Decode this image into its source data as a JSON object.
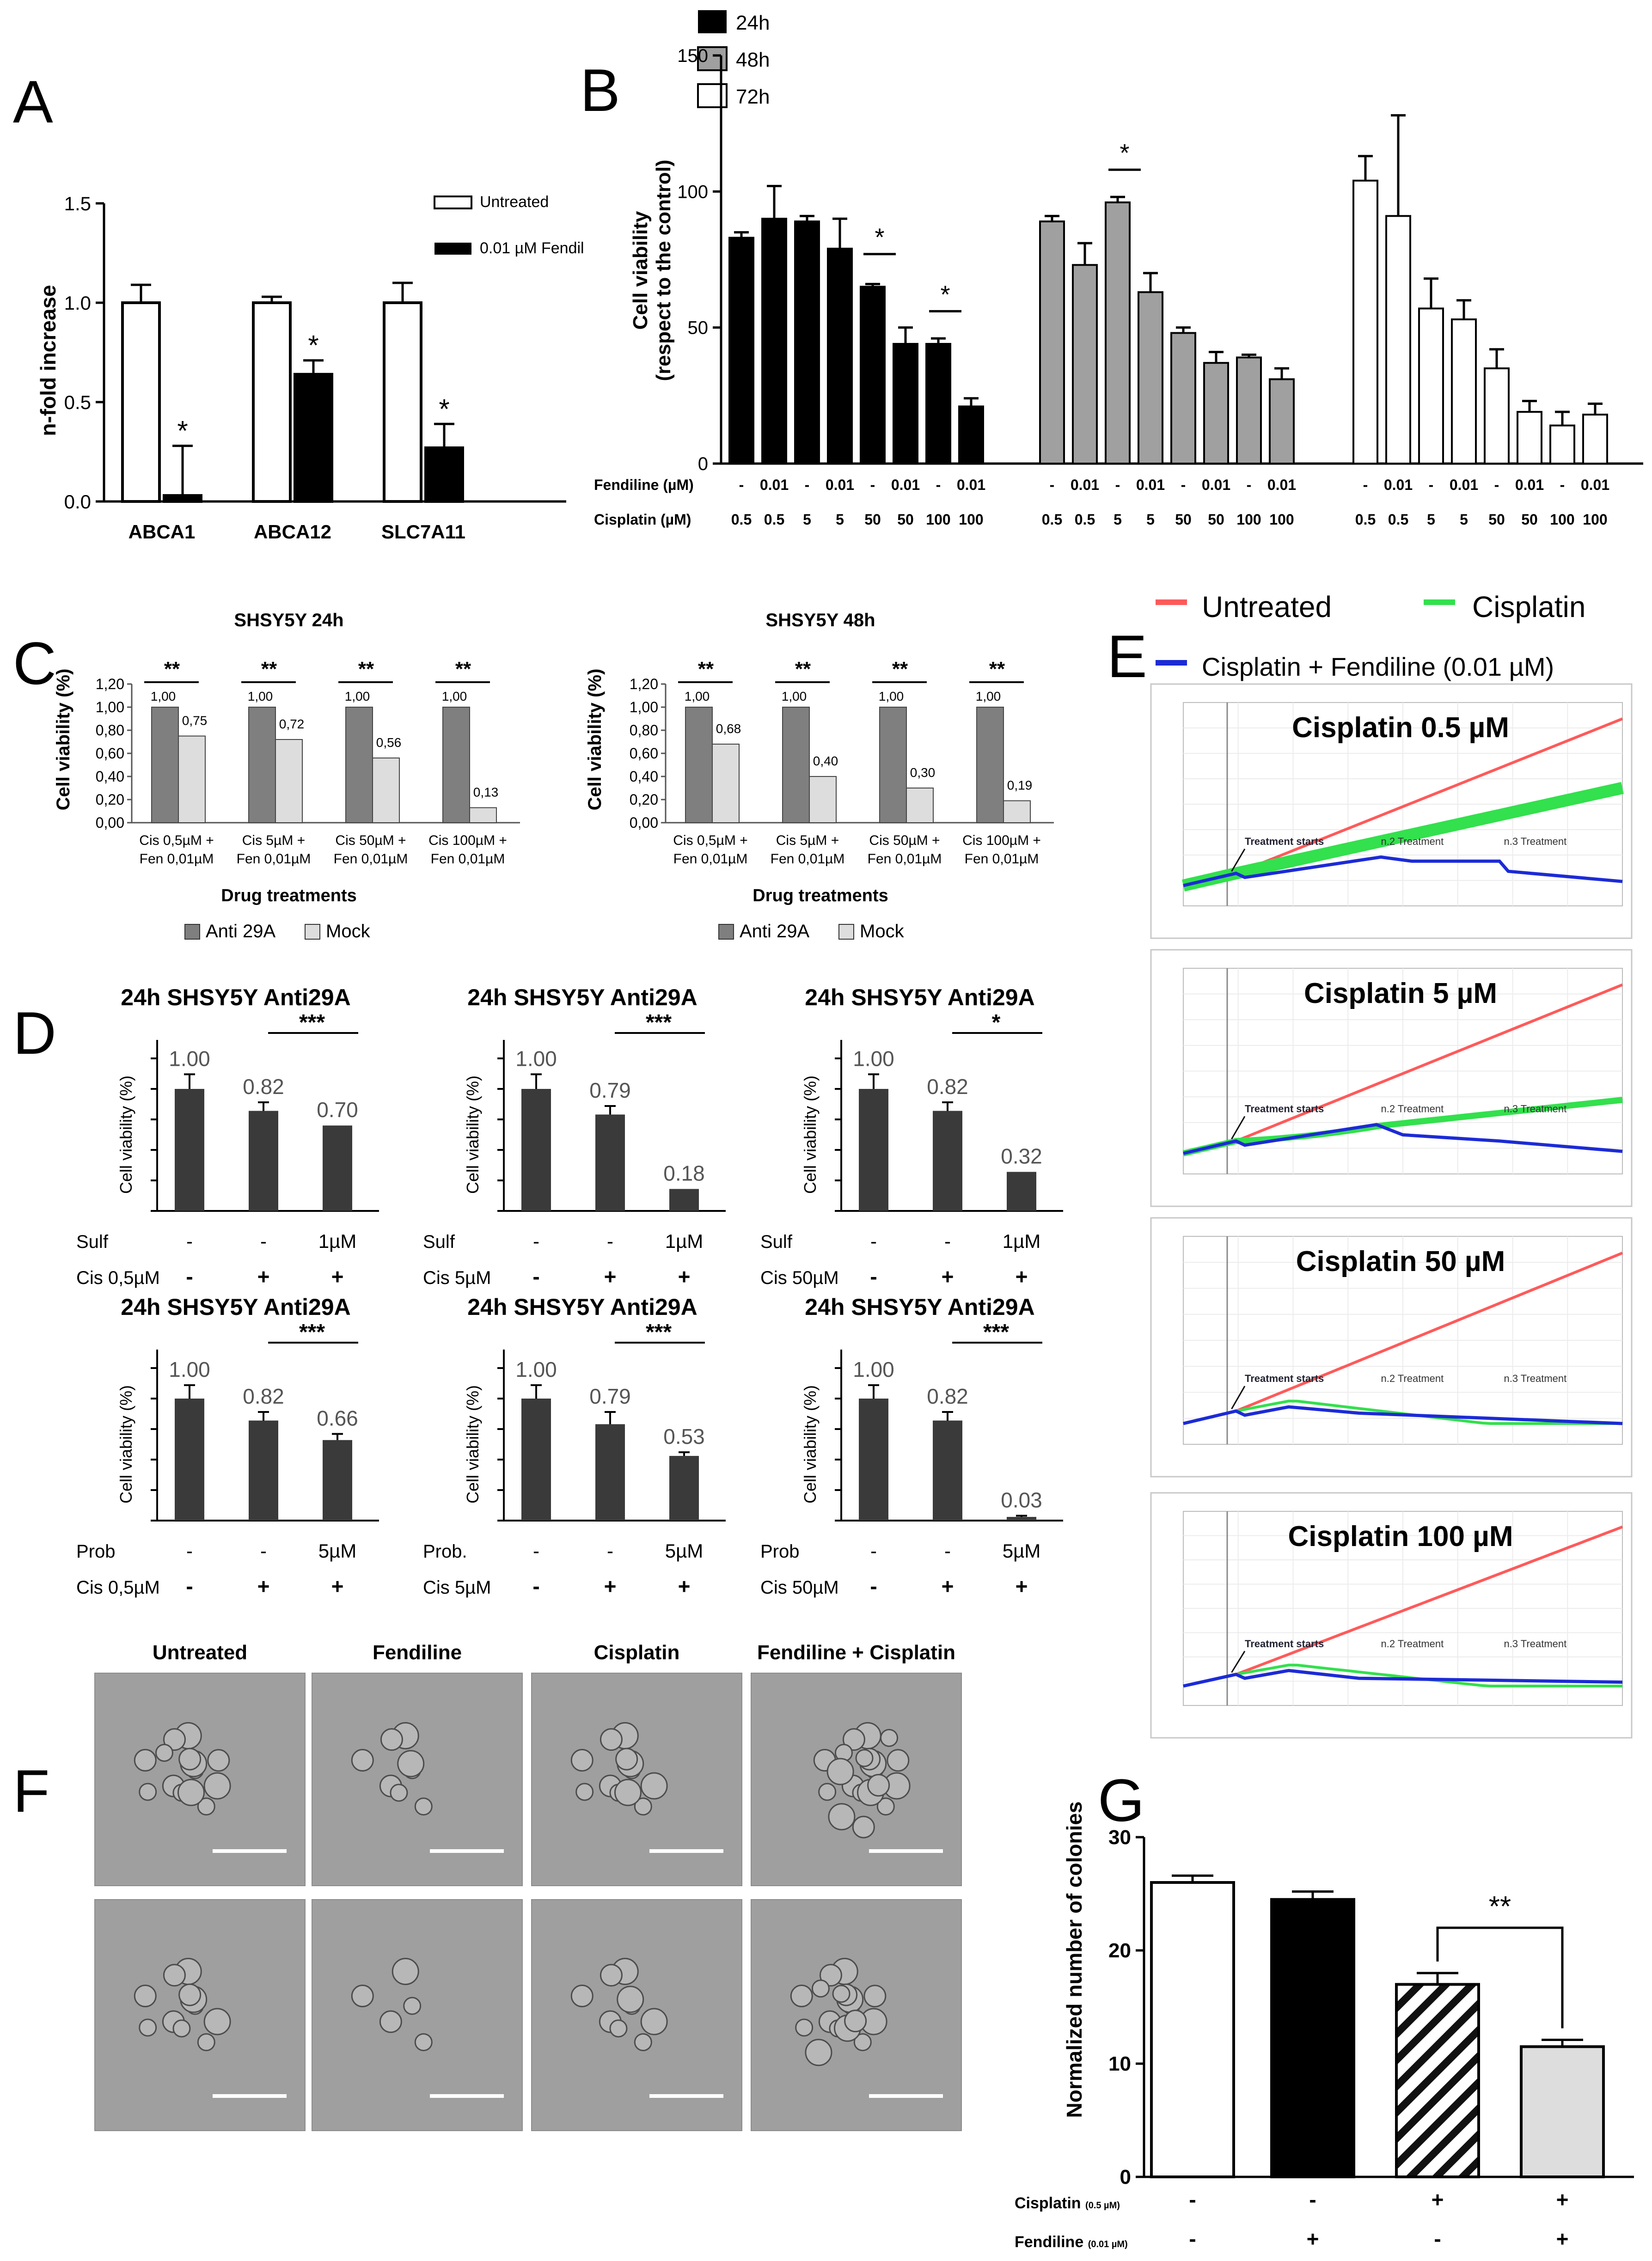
{
  "figure": {
    "panel_letters": [
      "A",
      "B",
      "C",
      "D",
      "E",
      "F",
      "G"
    ],
    "colors": {
      "black": "#000000",
      "gray": "#a0a0a0",
      "dark": "#3a3a3a",
      "light": "#dddddd",
      "mid": "#7f7f7f",
      "white": "#ffffff",
      "red": "#ff5a5a",
      "green": "#33e04d",
      "blue": "#1c2bd6",
      "photo": "#9f9f9f"
    }
  },
  "chart_data": [
    {
      "id": "A",
      "type": "bar",
      "ylabel": "n-fold increase",
      "ylim": [
        0,
        1.5
      ],
      "yticks": [
        "0.0",
        "0.5",
        "1.0",
        "1.5"
      ],
      "categories": [
        "ABCA1",
        "ABCA12",
        "SLC7A11"
      ],
      "series": [
        {
          "name": "Untreated",
          "fill": "white",
          "values": [
            1.0,
            1.0,
            1.0
          ],
          "errors": [
            0.09,
            0.03,
            0.1
          ]
        },
        {
          "name": "0.01 µM Fendil",
          "fill": "black",
          "values": [
            0.03,
            0.64,
            0.27
          ],
          "errors": [
            0.25,
            0.07,
            0.12
          ]
        }
      ],
      "annotations": [
        "*",
        "*",
        "*"
      ]
    },
    {
      "id": "B",
      "type": "bar",
      "ylabel_line1": "Cell viability",
      "ylabel_line2": "(respect to the control)",
      "ylim": [
        0,
        150
      ],
      "yticks": [
        "0",
        "50",
        "100",
        "150"
      ],
      "legend": [
        {
          "label": "24h",
          "fill": "black"
        },
        {
          "label": "48h",
          "fill": "gray"
        },
        {
          "label": "72h",
          "fill": "white"
        }
      ],
      "row_labels": [
        "Fendiline (µM)",
        "Cisplatin (µM)"
      ],
      "fendiline": [
        "-",
        "0.01",
        "-",
        "0.01",
        "-",
        "0.01",
        "-",
        "0.01"
      ],
      "cisplatin": [
        "0.5",
        "0.5",
        "5",
        "5",
        "50",
        "50",
        "100",
        "100"
      ],
      "series": [
        {
          "name": "24h",
          "fill": "black",
          "values": [
            83,
            90,
            89,
            79,
            65,
            44,
            44,
            21
          ],
          "errors": [
            2,
            12,
            2,
            11,
            1,
            6,
            2,
            3
          ]
        },
        {
          "name": "48h",
          "fill": "gray",
          "values": [
            89,
            73,
            96,
            63,
            48,
            37,
            39,
            31
          ],
          "errors": [
            2,
            8,
            2,
            7,
            2,
            4,
            1,
            4
          ]
        },
        {
          "name": "72h",
          "fill": "white",
          "values": [
            104,
            91,
            57,
            53,
            35,
            19,
            14,
            18
          ],
          "errors": [
            9,
            37,
            11,
            7,
            7,
            4,
            5,
            4
          ]
        }
      ],
      "annotations": [
        "*",
        "*",
        "*"
      ]
    },
    {
      "id": "C1",
      "type": "bar",
      "title": "SHSY5Y 24h",
      "ylabel": "Cell viability (%)",
      "xlabel": "Drug treatments",
      "ylim": [
        0,
        1.2
      ],
      "yticks": [
        "0,00",
        "0,20",
        "0,40",
        "0,60",
        "0,80",
        "1,00",
        "1,20"
      ],
      "categories_line1": [
        "Cis 0,5µM +",
        "Cis 5µM +",
        "Cis 50µM +",
        "Cis 100µM +"
      ],
      "categories_line2": [
        "Fen 0,01µM",
        "Fen 0,01µM",
        "Fen 0,01µM",
        "Fen 0,01µM"
      ],
      "series": [
        {
          "name": "Anti 29A",
          "fill": "mid",
          "values": [
            1.0,
            1.0,
            1.0,
            1.0
          ],
          "labels": [
            "1,00",
            "1,00",
            "1,00",
            "1,00"
          ]
        },
        {
          "name": "Mock",
          "fill": "light",
          "values": [
            0.75,
            0.72,
            0.56,
            0.13
          ],
          "labels": [
            "0,75",
            "0,72",
            "0,56",
            "0,13"
          ]
        }
      ],
      "annotations": [
        "**",
        "**",
        "**",
        "**"
      ]
    },
    {
      "id": "C2",
      "type": "bar",
      "title": "SHSY5Y 48h",
      "ylabel": "Cell viability (%)",
      "xlabel": "Drug treatments",
      "ylim": [
        0,
        1.2
      ],
      "yticks": [
        "0,00",
        "0,20",
        "0,40",
        "0,60",
        "0,80",
        "1,00",
        "1,20"
      ],
      "categories_line1": [
        "Cis 0,5µM +",
        "Cis 5µM +",
        "Cis 50µM +",
        "Cis 100µM +"
      ],
      "categories_line2": [
        "Fen 0,01µM",
        "Fen 0,01µM",
        "Fen 0,01µM",
        "Fen 0,01µM"
      ],
      "series": [
        {
          "name": "Anti 29A",
          "fill": "mid",
          "values": [
            1.0,
            1.0,
            1.0,
            1.0
          ],
          "labels": [
            "1,00",
            "1,00",
            "1,00",
            "1,00"
          ]
        },
        {
          "name": "Mock",
          "fill": "light",
          "values": [
            0.68,
            0.4,
            0.3,
            0.19
          ],
          "labels": [
            "0,68",
            "0,40",
            "0,30",
            "0,19"
          ]
        }
      ],
      "annotations": [
        "**",
        "**",
        "**",
        "**"
      ]
    },
    {
      "id": "D1",
      "type": "bar",
      "title": "24h SHSY5Y Anti29A",
      "ylabel": "Cell viability (%)",
      "ylim": [
        0,
        1.25
      ],
      "values": [
        1.0,
        0.82,
        0.7
      ],
      "errors": [
        0.12,
        0.07,
        0.0
      ],
      "labels": [
        "1.00",
        "0.82",
        "0.70"
      ],
      "sig": "***",
      "row1_label": "Sulf",
      "row1": [
        "-",
        "-",
        "1µM"
      ],
      "row2_label": "Cis 0,5µM",
      "row2": [
        "-",
        "+",
        "+"
      ]
    },
    {
      "id": "D2",
      "type": "bar",
      "title": "24h SHSY5Y Anti29A",
      "ylabel": "Cell viability (%)",
      "ylim": [
        0,
        1.25
      ],
      "values": [
        1.0,
        0.79,
        0.18
      ],
      "errors": [
        0.12,
        0.07,
        0.0
      ],
      "labels": [
        "1.00",
        "0.79",
        "0.18"
      ],
      "sig": "***",
      "row1_label": "Sulf",
      "row1": [
        "-",
        "-",
        "1µM"
      ],
      "row2_label": "Cis 5µM",
      "row2": [
        "-",
        "+",
        "+"
      ]
    },
    {
      "id": "D3",
      "type": "bar",
      "title": "24h SHSY5Y Anti29A",
      "ylabel": "Cell viability (%)",
      "ylim": [
        0,
        1.25
      ],
      "values": [
        1.0,
        0.82,
        0.32
      ],
      "errors": [
        0.12,
        0.07,
        0.0
      ],
      "labels": [
        "1.00",
        "0.82",
        "0.32"
      ],
      "sig": "*",
      "row1_label": "Sulf",
      "row1": [
        "-",
        "-",
        "1µM"
      ],
      "row2_label": "Cis 50µM",
      "row2": [
        "-",
        "+",
        "+"
      ]
    },
    {
      "id": "D4",
      "type": "bar",
      "title": "24h SHSY5Y Anti29A",
      "ylabel": "Cell viability (%)",
      "ylim": [
        0,
        1.25
      ],
      "values": [
        1.0,
        0.82,
        0.66
      ],
      "errors": [
        0.11,
        0.07,
        0.05
      ],
      "labels": [
        "1.00",
        "0.82",
        "0.66"
      ],
      "sig": "***",
      "row1_label": "Prob",
      "row1": [
        "-",
        "-",
        "5µM"
      ],
      "row2_label": "Cis 0,5µM",
      "row2": [
        "-",
        "+",
        "+"
      ]
    },
    {
      "id": "D5",
      "type": "bar",
      "title": "24h SHSY5Y Anti29A",
      "ylabel": "Cell viability (%)",
      "ylim": [
        0,
        1.25
      ],
      "values": [
        1.0,
        0.79,
        0.53
      ],
      "errors": [
        0.11,
        0.1,
        0.03
      ],
      "labels": [
        "1.00",
        "0.79",
        "0.53"
      ],
      "sig": "***",
      "row1_label": "Prob.",
      "row1": [
        "-",
        "-",
        "5µM"
      ],
      "row2_label": "Cis 5µM",
      "row2": [
        "-",
        "+",
        "+"
      ]
    },
    {
      "id": "D6",
      "type": "bar",
      "title": "24h SHSY5Y Anti29A",
      "ylabel": "Cell viability (%)",
      "ylim": [
        0,
        1.25
      ],
      "values": [
        1.0,
        0.82,
        0.03
      ],
      "errors": [
        0.11,
        0.07,
        0.01
      ],
      "labels": [
        "1.00",
        "0.82",
        "0.03"
      ],
      "sig": "***",
      "row1_label": "Prob",
      "row1": [
        "-",
        "-",
        "5µM"
      ],
      "row2_label": "Cis 50µM",
      "row2": [
        "-",
        "+",
        "+"
      ]
    },
    {
      "id": "E",
      "type": "line",
      "legend": [
        {
          "label": "Untreated",
          "color": "red"
        },
        {
          "label": "Cisplatin",
          "color": "green"
        },
        {
          "label": "Cisplatin + Fendiline (0.01 µM)",
          "color": "blue"
        }
      ],
      "xlim": [
        0,
        100
      ],
      "ylim": [
        0,
        1
      ],
      "annotations": {
        "start": "Treatment starts",
        "n2": "n.2 Treatment",
        "n3": "n.3 Treatment"
      },
      "subplots": [
        {
          "title": "Cisplatin 0.5 µM",
          "untreated_end": 0.92,
          "cisplatin_end": 0.58,
          "cis_band": 0.06,
          "blue": [
            [
              0,
              0.1
            ],
            [
              12,
              0.16
            ],
            [
              14,
              0.14
            ],
            [
              45,
              0.24
            ],
            [
              52,
              0.22
            ],
            [
              72,
              0.22
            ],
            [
              74,
              0.17
            ],
            [
              100,
              0.12
            ]
          ]
        },
        {
          "title": "Cisplatin 5 µM",
          "untreated_end": 0.92,
          "cisplatin_end": 0.36,
          "cis_band": 0.03,
          "blue": [
            [
              0,
              0.1
            ],
            [
              12,
              0.16
            ],
            [
              14,
              0.14
            ],
            [
              44,
              0.24
            ],
            [
              50,
              0.19
            ],
            [
              72,
              0.16
            ],
            [
              100,
              0.11
            ]
          ]
        },
        {
          "title": "Cisplatin 50 µM",
          "untreated_end": 0.92,
          "cisplatin_end": 0.1,
          "cis_band": 0.01,
          "blue": [
            [
              0,
              0.1
            ],
            [
              12,
              0.16
            ],
            [
              14,
              0.14
            ],
            [
              24,
              0.18
            ],
            [
              40,
              0.15
            ],
            [
              100,
              0.1
            ]
          ]
        },
        {
          "title": "Cisplatin 100 µM",
          "untreated_end": 0.92,
          "cisplatin_end": 0.1,
          "cis_band": 0.01,
          "blue": [
            [
              0,
              0.1
            ],
            [
              12,
              0.16
            ],
            [
              14,
              0.14
            ],
            [
              24,
              0.18
            ],
            [
              40,
              0.14
            ],
            [
              100,
              0.12
            ]
          ]
        }
      ]
    },
    {
      "id": "G",
      "type": "bar",
      "ylabel": "Normalized number of colonies",
      "ylim": [
        0,
        30
      ],
      "yticks": [
        "0",
        "10",
        "20",
        "30"
      ],
      "categories": [
        "Untreated",
        "Fendiline",
        "Cisplatin",
        "Fendiline + Cisplatin"
      ],
      "values": [
        26,
        24.5,
        17,
        11.5
      ],
      "errors": [
        0.6,
        0.7,
        1.0,
        0.6
      ],
      "fills": [
        "white",
        "black",
        "hatch",
        "light"
      ],
      "row1_label": "Cisplatin",
      "row1_unit": "(0.5 µM)",
      "row1": [
        "-",
        "-",
        "+",
        "+"
      ],
      "row2_label": "Fendiline",
      "row2_unit": "(0.01 µM)",
      "row2": [
        "-",
        "+",
        "-",
        "+"
      ],
      "sig": "**"
    }
  ],
  "panel_f": {
    "labels": [
      "Untreated",
      "Fendiline",
      "Cisplatin",
      "Fendiline + Cisplatin"
    ],
    "rows": 2
  }
}
